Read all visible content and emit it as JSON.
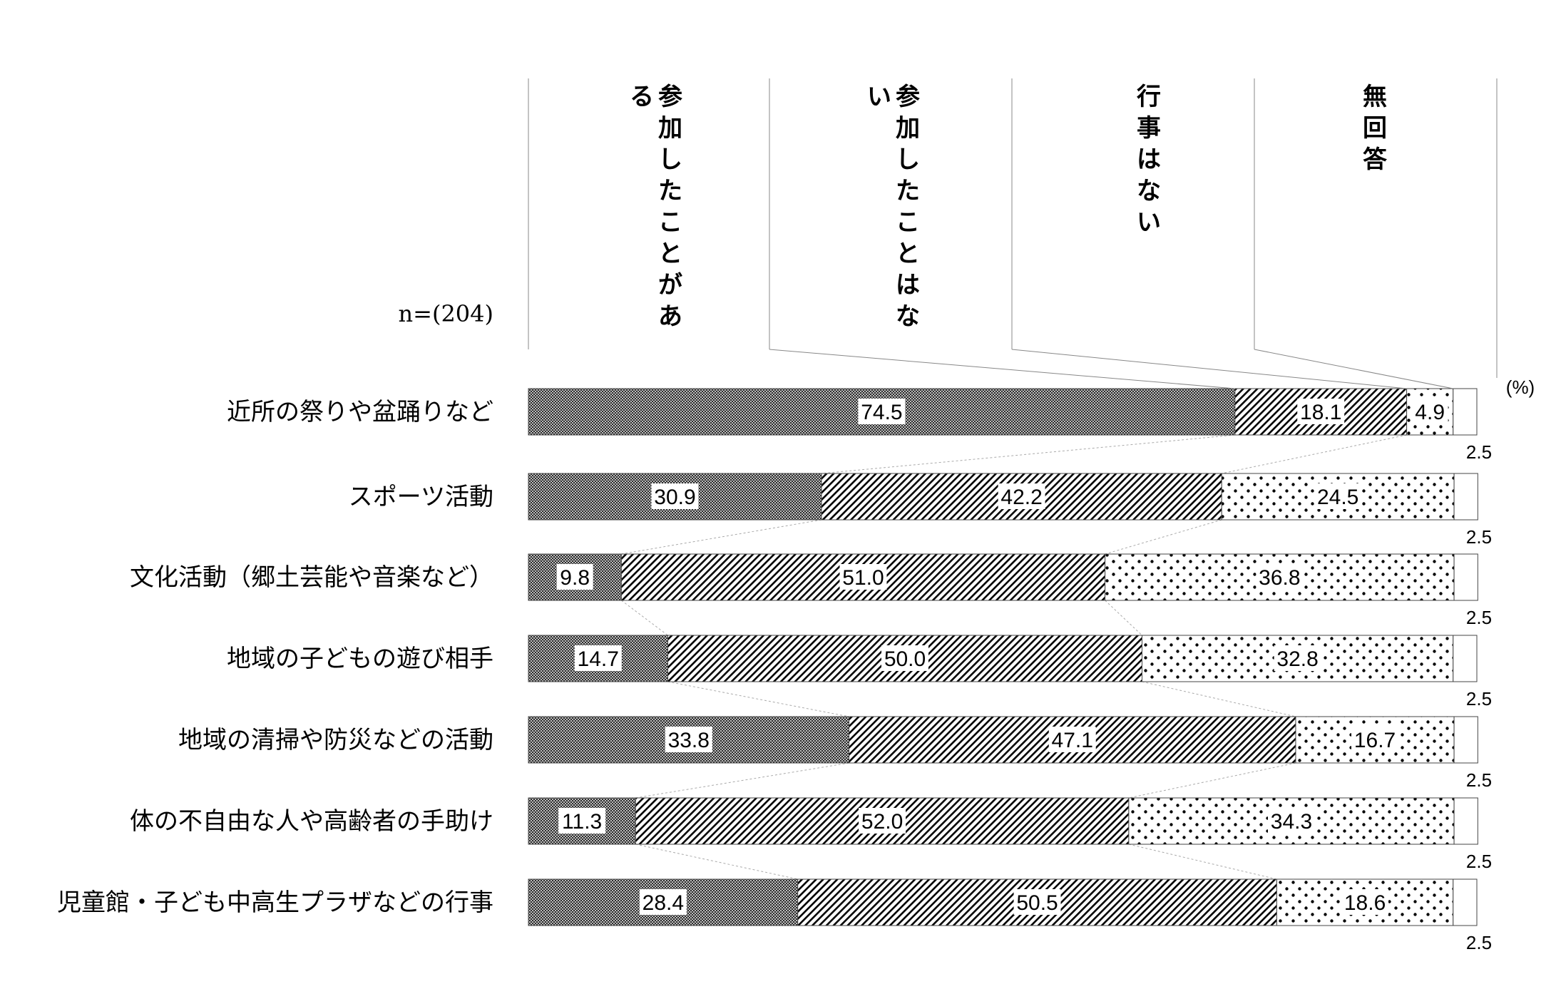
{
  "chart_data": {
    "type": "bar",
    "orientation": "horizontal",
    "stacked": true,
    "sample_label": "n=(204)",
    "unit_label": "(%)",
    "categories": [
      "近所の祭りや盆踊りなど",
      "スポーツ活動",
      "文化活動（郷土芸能や音楽など）",
      "地域の子どもの遊び相手",
      "地域の清掃や防災などの活動",
      "体の不自由な人や高齢者の手助け",
      "児童館・子ども中高生プラザなどの行事"
    ],
    "series": [
      {
        "name": "参加したことがある",
        "values": [
          74.5,
          30.9,
          9.8,
          14.7,
          33.8,
          11.3,
          28.4
        ],
        "pattern": "dense-dots",
        "color": "#555555"
      },
      {
        "name": "参加したことはない",
        "values": [
          18.1,
          42.2,
          51.0,
          50.0,
          47.1,
          52.0,
          50.5
        ],
        "pattern": "diagonal-hatch",
        "color": "#000000"
      },
      {
        "name": "行事はない",
        "values": [
          4.9,
          24.5,
          36.8,
          32.8,
          16.7,
          34.3,
          18.6
        ],
        "pattern": "sparse-dots",
        "color": "#000000"
      },
      {
        "name": "無回答",
        "values": [
          2.5,
          2.5,
          2.5,
          2.5,
          2.5,
          2.5,
          2.5
        ],
        "pattern": "white",
        "color": "#ffffff"
      }
    ],
    "value_labels": [
      [
        "74.5",
        "18.1",
        "4.9",
        "2.5"
      ],
      [
        "30.9",
        "42.2",
        "24.5",
        "2.5"
      ],
      [
        "9.8",
        "51.0",
        "36.8",
        "2.5"
      ],
      [
        "14.7",
        "50.0",
        "32.8",
        "2.5"
      ],
      [
        "33.8",
        "47.1",
        "16.7",
        "2.5"
      ],
      [
        "11.3",
        "52.0",
        "34.3",
        "2.5"
      ],
      [
        "28.4",
        "50.5",
        "18.6",
        "2.5"
      ]
    ],
    "xlim": [
      0,
      100
    ],
    "legend_placement": "top",
    "grid": false
  }
}
